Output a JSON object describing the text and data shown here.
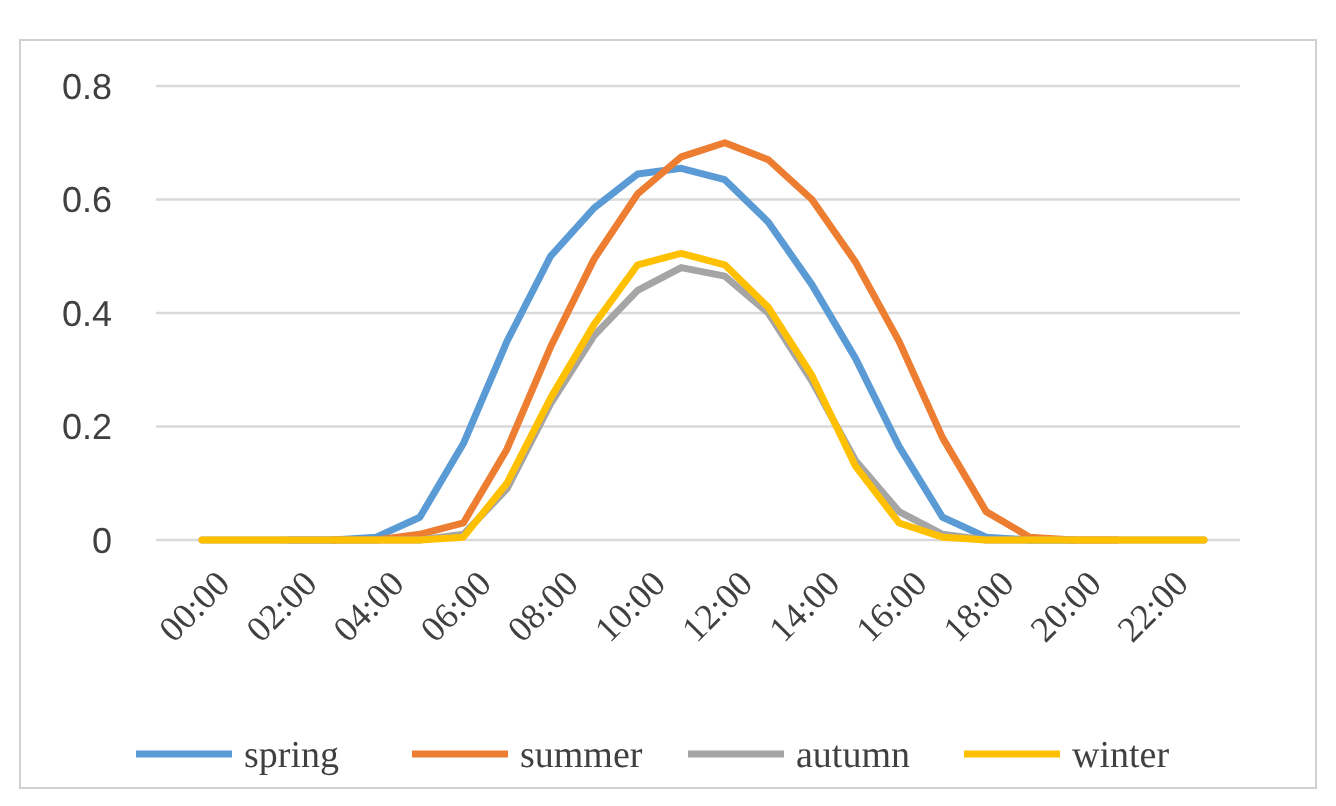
{
  "chart_data": {
    "type": "line",
    "categories": [
      "00:00",
      null,
      "02:00",
      null,
      "04:00",
      null,
      "06:00",
      null,
      "08:00",
      null,
      "10:00",
      null,
      "12:00",
      null,
      "14:00",
      null,
      "16:00",
      null,
      "18:00",
      null,
      "20:00",
      null,
      "22:00",
      null
    ],
    "series": [
      {
        "name": "spring",
        "color": "#5b9bd5",
        "values": [
          null,
          null,
          0,
          0,
          0.005,
          0.04,
          0.17,
          0.35,
          0.5,
          0.585,
          0.645,
          0.655,
          0.635,
          0.56,
          0.45,
          0.32,
          0.165,
          0.04,
          0.005,
          0,
          0,
          null,
          null,
          null
        ]
      },
      {
        "name": "summer",
        "color": "#ed7d31",
        "values": [
          null,
          null,
          null,
          0,
          0,
          0.01,
          0.03,
          0.16,
          0.34,
          0.495,
          0.61,
          0.675,
          0.7,
          0.67,
          0.6,
          0.49,
          0.35,
          0.18,
          0.05,
          0.005,
          0,
          0,
          null,
          null
        ]
      },
      {
        "name": "autumn",
        "color": "#a5a5a5",
        "values": [
          0,
          0,
          0,
          0,
          0,
          0,
          0.01,
          0.09,
          0.24,
          0.36,
          0.44,
          0.48,
          0.465,
          0.4,
          0.28,
          0.14,
          0.05,
          0.01,
          0,
          0,
          0,
          0,
          0,
          0
        ]
      },
      {
        "name": "winter",
        "color": "#ffc000",
        "values": [
          0,
          0,
          0,
          0,
          0,
          0,
          0.005,
          0.1,
          0.25,
          0.38,
          0.485,
          0.505,
          0.485,
          0.41,
          0.29,
          0.13,
          0.03,
          0.005,
          0,
          0,
          0,
          0,
          0,
          0
        ]
      }
    ],
    "ylim": [
      0,
      0.8
    ],
    "yticks": [
      0,
      0.2,
      0.4,
      0.6,
      0.8
    ],
    "grid": "y",
    "legend": "bottom",
    "marker": "none",
    "line_style": "solid"
  }
}
